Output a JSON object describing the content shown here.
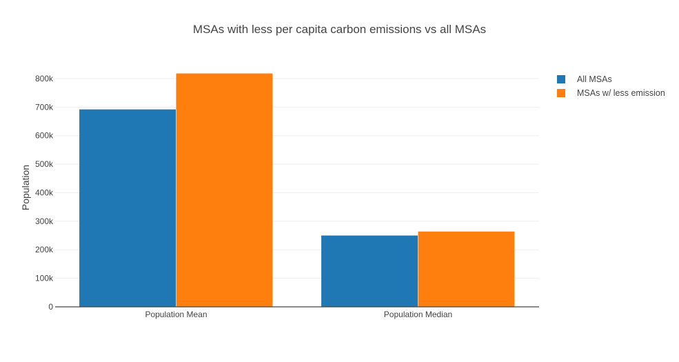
{
  "chart_data": {
    "type": "bar",
    "title": "MSAs with less per capita carbon emissions vs all MSAs",
    "xlabel": "",
    "ylabel": "Population",
    "categories": [
      "Population Mean",
      "Population Median"
    ],
    "series": [
      {
        "name": "All MSAs",
        "values": [
          692000,
          250000
        ],
        "color": "#1f77b4"
      },
      {
        "name": "MSAs w/ less emission",
        "values": [
          818000,
          264000
        ],
        "color": "#ff7f0e"
      }
    ],
    "ylim": [
      0,
      870000
    ],
    "yticks": [
      0,
      100000,
      200000,
      300000,
      400000,
      500000,
      600000,
      700000,
      800000
    ],
    "ytick_labels": [
      "0",
      "100k",
      "200k",
      "300k",
      "400k",
      "500k",
      "600k",
      "700k",
      "800k"
    ],
    "grid": "horizontal",
    "legend_position": "top-right"
  }
}
